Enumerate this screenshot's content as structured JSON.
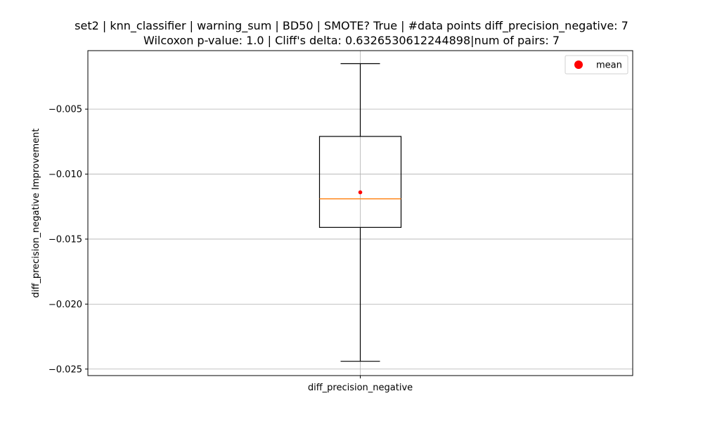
{
  "chart_data": {
    "type": "box",
    "title_lines": [
      "set2 | knn_classifier | warning_sum | BD50 | SMOTE? True | #data points diff_precision_negative: 7",
      "Wilcoxon p-value: 1.0 | Cliff's delta: 0.6326530612244898|num of pairs: 7"
    ],
    "xlabel": "",
    "ylabel": "diff_precision_negative Improvement",
    "categories": [
      "diff_precision_negative"
    ],
    "ylim": [
      -0.0255,
      -0.0005
    ],
    "yticks": [
      -0.005,
      -0.01,
      -0.015,
      -0.02,
      -0.025
    ],
    "ytick_labels": [
      "−0.005",
      "−0.010",
      "−0.015",
      "−0.020",
      "−0.025"
    ],
    "grid": true,
    "legend": {
      "placement": "top-right",
      "entries": [
        {
          "label": "mean",
          "color": "#ff0000",
          "marker": "circle"
        }
      ]
    },
    "boxes": [
      {
        "category": "diff_precision_negative",
        "whisker_low": -0.0244,
        "q1": -0.0141,
        "median": -0.0119,
        "q3": -0.0071,
        "whisker_high": -0.0015,
        "mean": -0.0114
      }
    ],
    "colors": {
      "box": "#000000",
      "median": "#ff7f0e",
      "mean": "#ff0000",
      "grid": "#b0b0b0"
    }
  }
}
